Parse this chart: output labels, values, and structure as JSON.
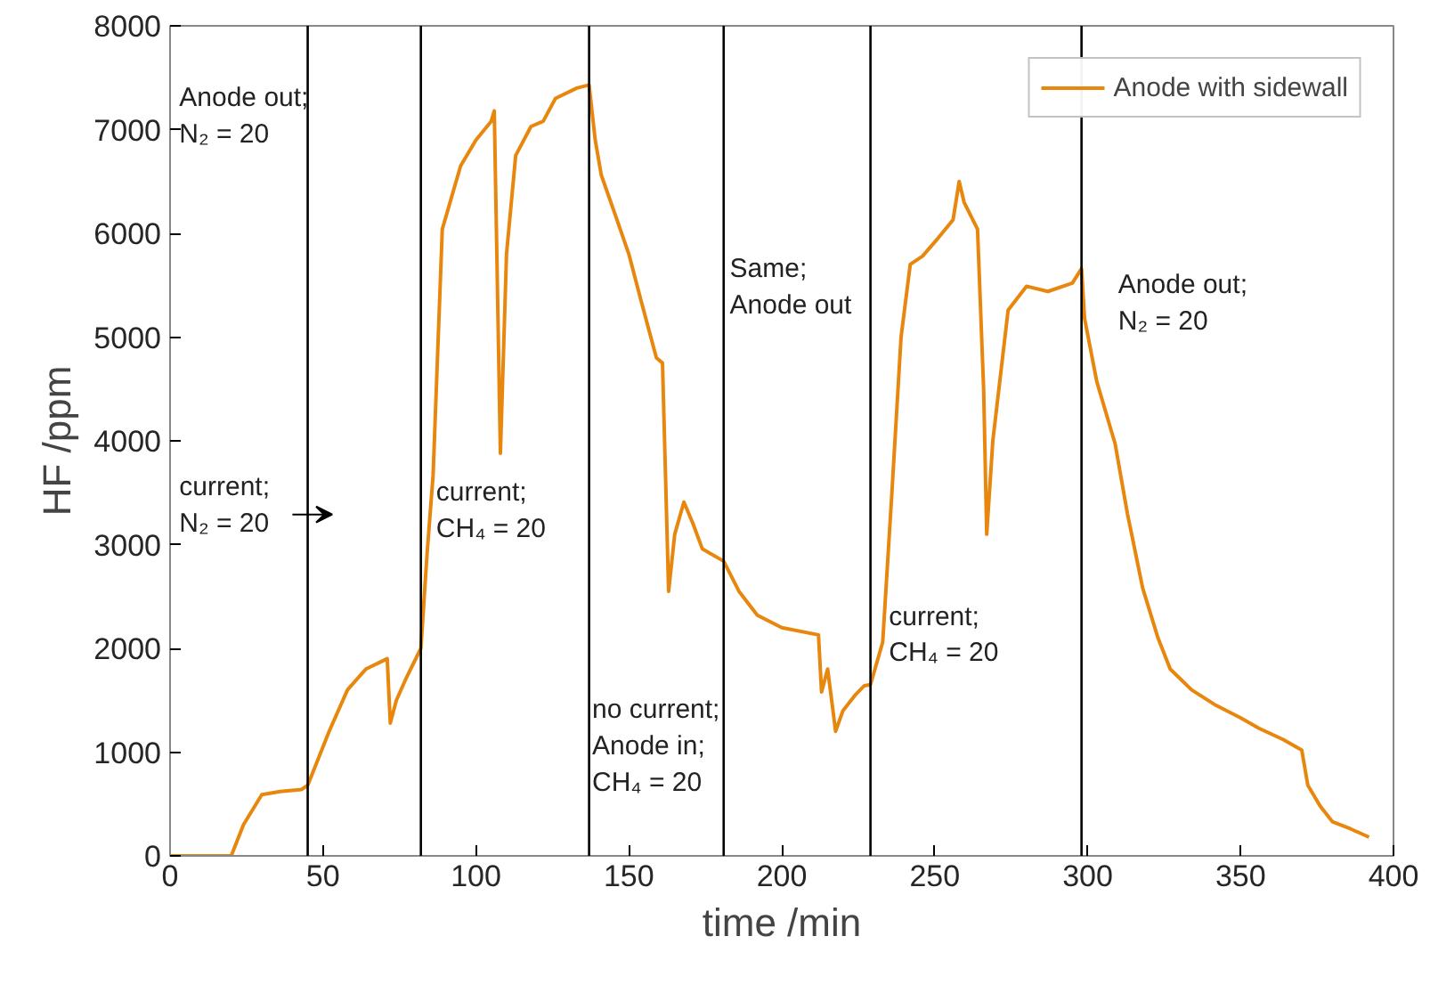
{
  "chart_data": {
    "type": "line",
    "xlabel": "time /min",
    "ylabel": "HF /ppm",
    "xlim": [
      0,
      400
    ],
    "ylim": [
      0,
      8000
    ],
    "xticks": [
      0,
      50,
      100,
      150,
      200,
      250,
      300,
      350,
      400
    ],
    "yticks": [
      0,
      1000,
      2000,
      3000,
      4000,
      5000,
      6000,
      7000,
      8000
    ],
    "grid": false,
    "legend": "top right",
    "marker": "none",
    "line_style": "solid",
    "series": [
      {
        "name": "Anode with sidewall",
        "color": "#e8870e",
        "x": [
          0,
          10,
          20,
          24,
          30,
          36,
          43,
          45,
          52,
          58,
          64,
          71,
          72,
          74,
          77,
          82,
          84,
          86,
          89,
          95,
          100,
          105,
          106,
          108,
          110,
          113,
          118,
          122,
          126,
          133,
          137,
          139,
          141,
          146,
          150,
          154,
          159,
          161,
          163,
          165,
          168,
          171,
          174,
          181,
          186,
          192,
          200,
          212,
          213,
          215,
          217.6,
          220,
          224,
          227,
          229,
          233,
          236,
          239,
          242,
          246,
          251,
          256,
          258,
          259.6,
          264,
          266,
          267,
          269,
          274,
          280,
          287,
          295,
          298,
          299,
          303,
          309,
          313,
          318,
          323,
          327,
          334,
          342,
          350,
          356,
          364,
          370,
          372,
          376,
          380,
          386,
          392
        ],
        "values": [
          0,
          0,
          0,
          300,
          590,
          620,
          640,
          680,
          1200,
          1600,
          1800,
          1900,
          1280,
          1500,
          1700,
          2000,
          2900,
          3670,
          6040,
          6650,
          6900,
          7080,
          7180,
          3880,
          5800,
          6750,
          7030,
          7080,
          7300,
          7400,
          7430,
          6900,
          6560,
          6140,
          5800,
          5350,
          4800,
          4750,
          2550,
          3100,
          3410,
          3200,
          2960,
          2840,
          2550,
          2320,
          2200,
          2130,
          1580,
          1800,
          1200,
          1400,
          1550,
          1640,
          1650,
          2060,
          3500,
          5000,
          5700,
          5780,
          5950,
          6130,
          6500,
          6300,
          6040,
          4500,
          3100,
          4000,
          5260,
          5490,
          5440,
          5520,
          5660,
          5180,
          4570,
          3970,
          3300,
          2580,
          2100,
          1800,
          1600,
          1450,
          1330,
          1230,
          1120,
          1020,
          680,
          480,
          330,
          260,
          180
        ]
      }
    ],
    "ref_lines": [
      {
        "axis": "x",
        "value": 45,
        "color": "#000000"
      },
      {
        "axis": "x",
        "value": 82,
        "color": "#000000"
      },
      {
        "axis": "x",
        "value": 137,
        "color": "#000000"
      },
      {
        "axis": "x",
        "value": 181,
        "color": "#000000"
      },
      {
        "axis": "x",
        "value": 229,
        "color": "#000000"
      },
      {
        "axis": "x",
        "value": 298,
        "color": "#000000"
      }
    ],
    "annotations": [
      "Anode out;\nN₂ = 20",
      "current;\nN₂ = 20",
      "current;\nCH₄ = 20",
      "no current;\nAnode in;\nCH₄ = 20",
      "Same;\nAnode out",
      "current;\nCH₄ = 20",
      "Anode out;\nN₂ = 20"
    ]
  }
}
